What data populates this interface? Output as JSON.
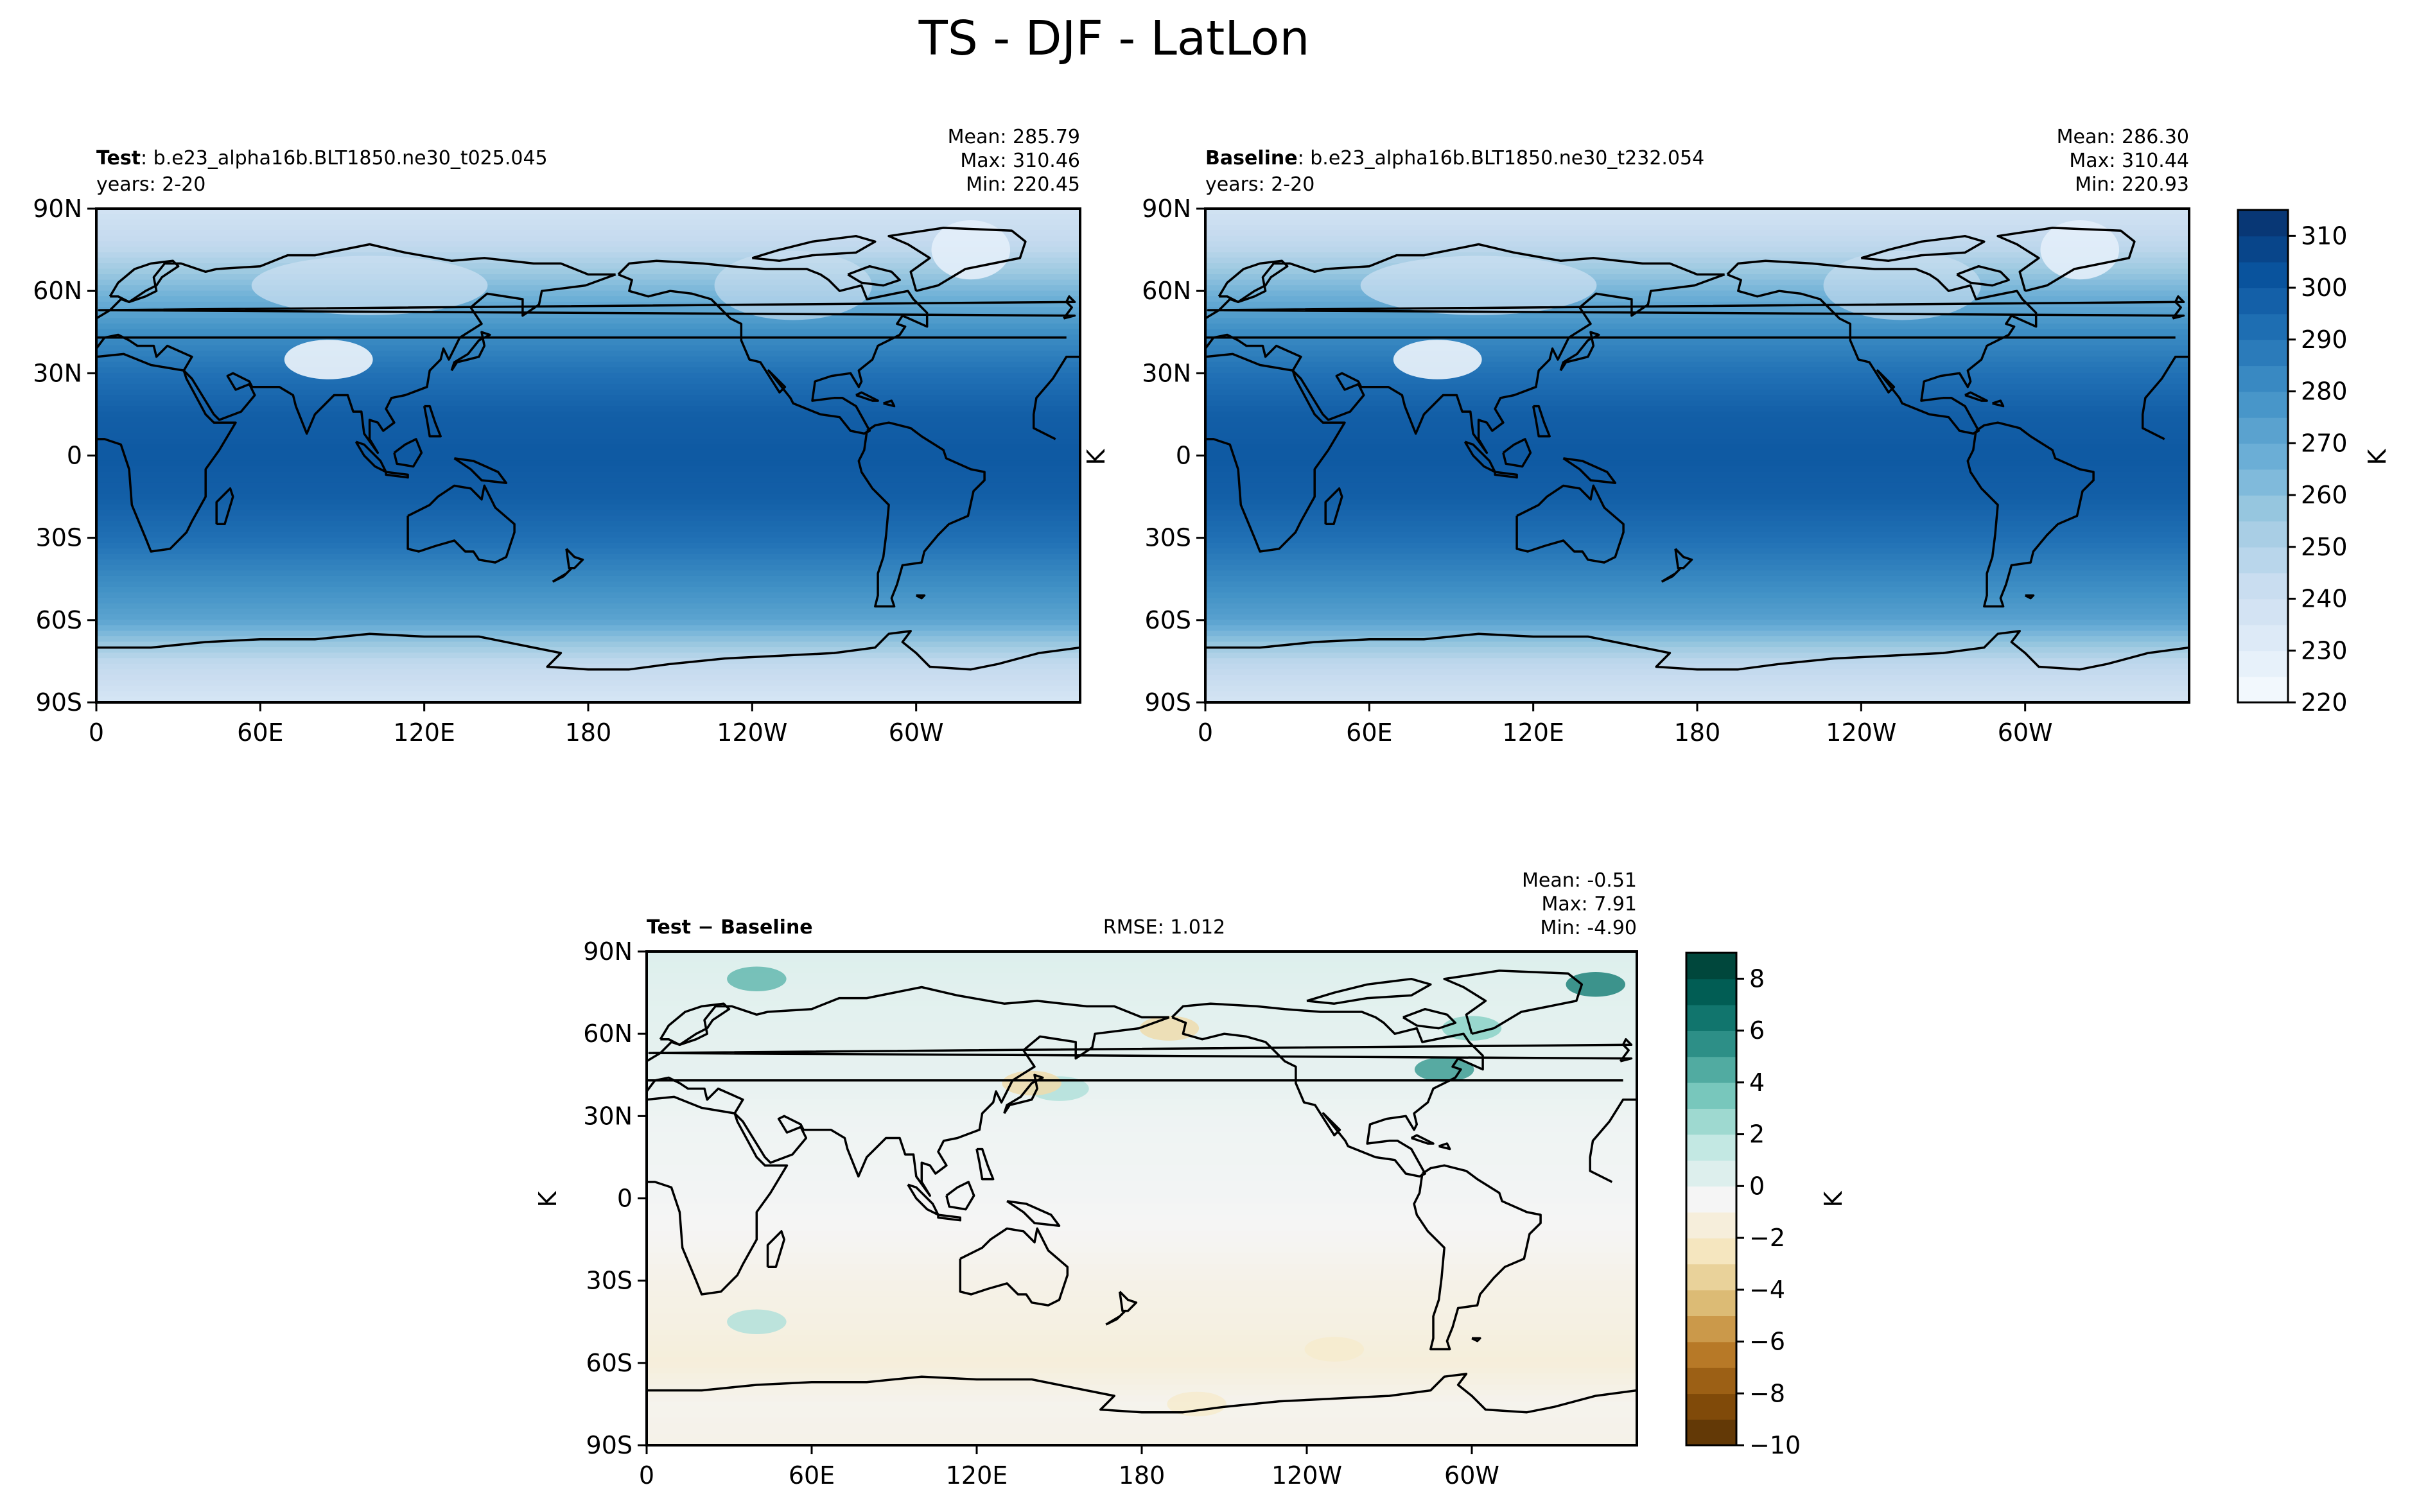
{
  "figure": {
    "title": "TS - DJF - LatLon"
  },
  "chart_data": [
    {
      "type": "heatmap",
      "panel": "test",
      "label_bold": "Test",
      "label_rest": ": b.e23_alpha16b.BLT1850.ne30_t025.045",
      "years": "years: 2-20",
      "stats": [
        "Mean: 285.79",
        "Max: 310.46",
        "Min: 220.45"
      ],
      "mean": 285.79,
      "max": 310.46,
      "min": 220.45,
      "units": "K",
      "xticks": [
        "0",
        "60E",
        "120E",
        "180",
        "120W",
        "60W"
      ],
      "yticks": [
        "90N",
        "60N",
        "30N",
        "0",
        "30S",
        "60S",
        "90S"
      ],
      "xlim": [
        0,
        360
      ],
      "ylim": [
        -90,
        90
      ],
      "colormap": "Blues",
      "zonal_profile": [
        {
          "lat": 90,
          "value": 238
        },
        {
          "lat": 75,
          "value": 246
        },
        {
          "lat": 60,
          "value": 264
        },
        {
          "lat": 45,
          "value": 280
        },
        {
          "lat": 30,
          "value": 291
        },
        {
          "lat": 15,
          "value": 298
        },
        {
          "lat": 0,
          "value": 300
        },
        {
          "lat": -15,
          "value": 298
        },
        {
          "lat": -30,
          "value": 292
        },
        {
          "lat": -45,
          "value": 282
        },
        {
          "lat": -60,
          "value": 272
        },
        {
          "lat": -75,
          "value": 246
        },
        {
          "lat": -90,
          "value": 236
        }
      ]
    },
    {
      "type": "heatmap",
      "panel": "baseline",
      "label_bold": "Baseline",
      "label_rest": ": b.e23_alpha16b.BLT1850.ne30_t232.054",
      "years": "years: 2-20",
      "stats": [
        "Mean: 286.30",
        "Max: 310.44",
        "Min: 220.93"
      ],
      "mean": 286.3,
      "max": 310.44,
      "min": 220.93,
      "units": "K",
      "xticks": [
        "0",
        "60E",
        "120E",
        "180",
        "120W",
        "60W"
      ],
      "yticks": [
        "90N",
        "60N",
        "30N",
        "0",
        "30S",
        "60S",
        "90S"
      ],
      "xlim": [
        0,
        360
      ],
      "ylim": [
        -90,
        90
      ],
      "colormap": "Blues",
      "colorbar": {
        "ticks": [
          "220",
          "230",
          "240",
          "250",
          "260",
          "270",
          "280",
          "290",
          "300",
          "310"
        ],
        "range": [
          220,
          315
        ],
        "label": "K"
      },
      "zonal_profile": [
        {
          "lat": 90,
          "value": 238
        },
        {
          "lat": 75,
          "value": 247
        },
        {
          "lat": 60,
          "value": 265
        },
        {
          "lat": 45,
          "value": 281
        },
        {
          "lat": 30,
          "value": 291
        },
        {
          "lat": 15,
          "value": 298
        },
        {
          "lat": 0,
          "value": 300
        },
        {
          "lat": -15,
          "value": 298
        },
        {
          "lat": -30,
          "value": 292
        },
        {
          "lat": -45,
          "value": 283
        },
        {
          "lat": -60,
          "value": 273
        },
        {
          "lat": -75,
          "value": 247
        },
        {
          "lat": -90,
          "value": 237
        }
      ]
    },
    {
      "type": "heatmap",
      "panel": "diff",
      "label_bold_a": "Test",
      "label_sep": " − ",
      "label_bold_b": "Baseline",
      "rmse": "RMSE: 1.012",
      "stats": [
        "Mean: -0.51",
        "Max:  7.91",
        "Min: -4.90"
      ],
      "mean": -0.51,
      "max": 7.91,
      "min": -4.9,
      "units": "K",
      "xticks": [
        "0",
        "60E",
        "120E",
        "180",
        "120W",
        "60W"
      ],
      "yticks": [
        "90N",
        "60N",
        "30N",
        "0",
        "30S",
        "60S",
        "90S"
      ],
      "xlim": [
        0,
        360
      ],
      "ylim": [
        -90,
        90
      ],
      "colormap": "BrBG",
      "colorbar": {
        "ticks": [
          "−10",
          "−8",
          "−6",
          "−4",
          "−2",
          "0",
          "2",
          "4",
          "6",
          "8"
        ],
        "range": [
          -10,
          9
        ],
        "label": "K"
      },
      "zonal_profile": [
        {
          "lat": 90,
          "value": 0.5
        },
        {
          "lat": 75,
          "value": 0.3
        },
        {
          "lat": 60,
          "value": 0.2
        },
        {
          "lat": 45,
          "value": 0.1
        },
        {
          "lat": 30,
          "value": -0.2
        },
        {
          "lat": 15,
          "value": -0.3
        },
        {
          "lat": 0,
          "value": -0.4
        },
        {
          "lat": -15,
          "value": -0.6
        },
        {
          "lat": -30,
          "value": -1.0
        },
        {
          "lat": -45,
          "value": -1.2
        },
        {
          "lat": -60,
          "value": -1.5
        },
        {
          "lat": -75,
          "value": -0.8
        },
        {
          "lat": -90,
          "value": -1.0
        }
      ],
      "anomalies": [
        {
          "lon": 40,
          "lat": 80,
          "value": 4
        },
        {
          "lon": 345,
          "lat": 78,
          "value": 6
        },
        {
          "lon": 290,
          "lat": 47,
          "value": 5
        },
        {
          "lon": 300,
          "lat": 62,
          "value": 3
        },
        {
          "lon": 150,
          "lat": 40,
          "value": 2
        },
        {
          "lon": 140,
          "lat": 42,
          "value": -3
        },
        {
          "lon": 190,
          "lat": 62,
          "value": -3
        },
        {
          "lon": 40,
          "lat": -45,
          "value": 2
        },
        {
          "lon": 250,
          "lat": -55,
          "value": -2
        },
        {
          "lon": 200,
          "lat": -75,
          "value": -2
        }
      ]
    }
  ]
}
